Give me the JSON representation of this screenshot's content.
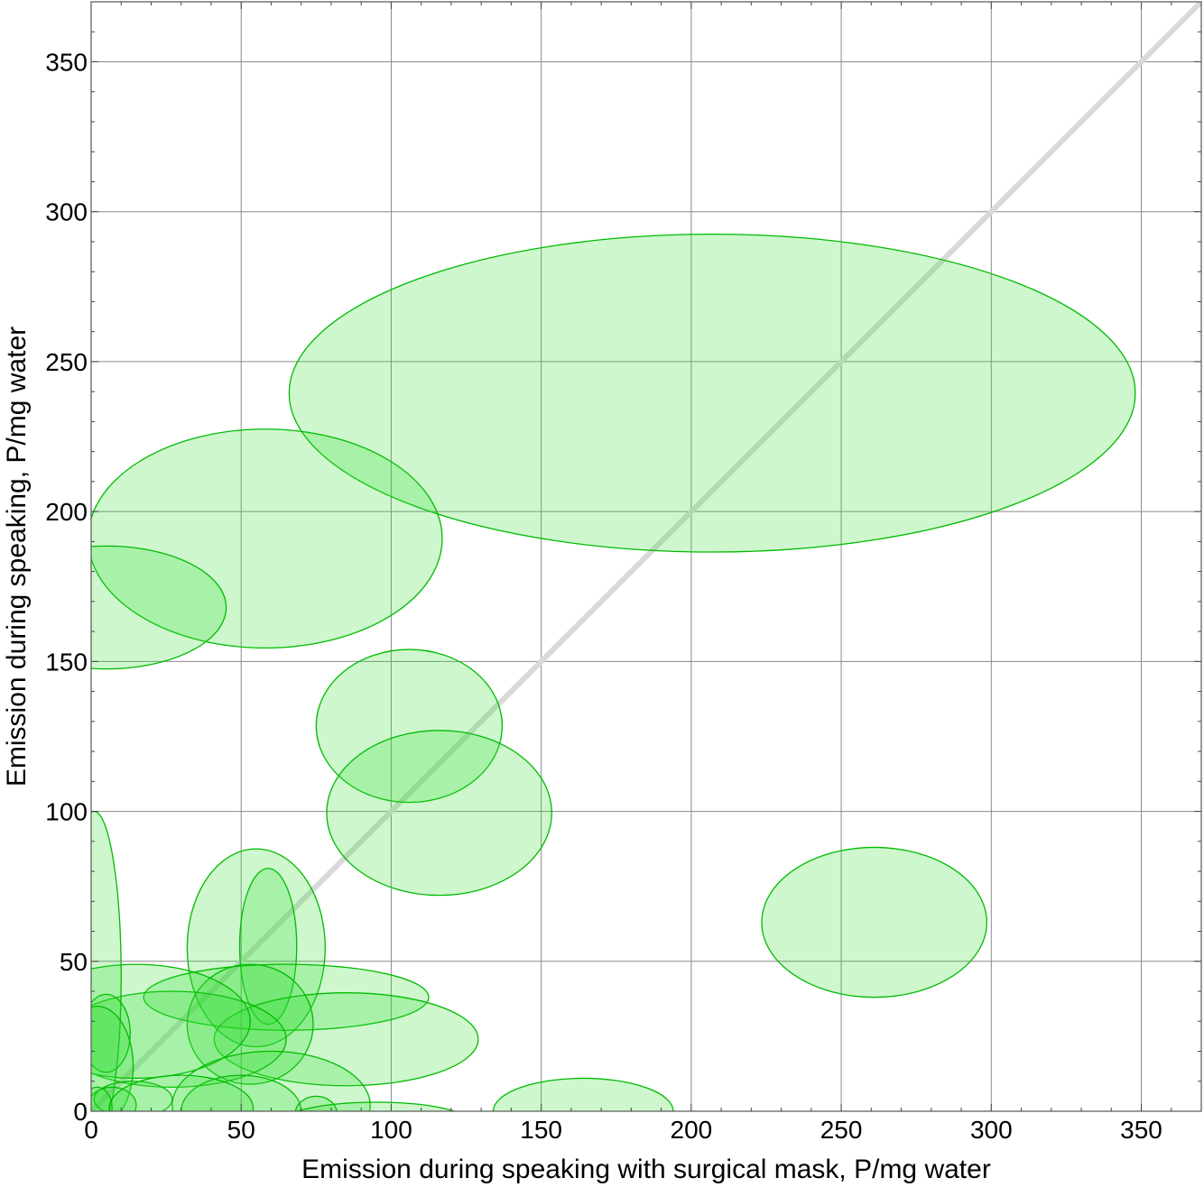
{
  "chart_data": {
    "type": "scatter",
    "title": "",
    "xlabel": "Emission during speaking with surgical mask,   P/mg water",
    "ylabel": "Emission during speaking,   P/mg water",
    "xlim": [
      0,
      370
    ],
    "ylim": [
      0,
      370
    ],
    "xticks": [
      0,
      50,
      100,
      150,
      200,
      250,
      300,
      350
    ],
    "yticks": [
      0,
      50,
      100,
      150,
      200,
      250,
      300,
      350
    ],
    "xtick_labels": [
      "0",
      "50",
      "100",
      "150",
      "200",
      "250",
      "300",
      "350"
    ],
    "ytick_labels": [
      "0",
      "50",
      "100",
      "150",
      "200",
      "250",
      "300",
      "350"
    ],
    "grid": true,
    "reference_line": {
      "from": [
        0,
        0
      ],
      "to": [
        370,
        370
      ],
      "color": "#d9d9d9"
    },
    "marker_fill": "#33dd33",
    "marker_stroke": "#00bb00",
    "ellipses": [
      {
        "cx": 207,
        "cy": 239.5,
        "rx": 141,
        "ry": 53
      },
      {
        "cx": 58,
        "cy": 191,
        "rx": 59,
        "ry": 36.5
      },
      {
        "cx": 5,
        "cy": 168,
        "rx": 40,
        "ry": 20.5
      },
      {
        "cx": 106,
        "cy": 128.5,
        "rx": 31,
        "ry": 25.5
      },
      {
        "cx": 116,
        "cy": 99.5,
        "rx": 37.5,
        "ry": 27.5
      },
      {
        "cx": 261,
        "cy": 63,
        "rx": 37.5,
        "ry": 25
      },
      {
        "cx": 55,
        "cy": 54.5,
        "rx": 23,
        "ry": 33
      },
      {
        "cx": 59,
        "cy": 55,
        "rx": 9.5,
        "ry": 26
      },
      {
        "cx": 65,
        "cy": 38,
        "rx": 47.5,
        "ry": 11
      },
      {
        "cx": 85,
        "cy": 24,
        "rx": 44,
        "ry": 15.5
      },
      {
        "cx": 53,
        "cy": 29,
        "rx": 21,
        "ry": 20
      },
      {
        "cx": 27,
        "cy": 24,
        "rx": 38,
        "ry": 16
      },
      {
        "cx": 15,
        "cy": 30,
        "rx": 38,
        "ry": 19
      },
      {
        "cx": 1,
        "cy": 45,
        "rx": 9,
        "ry": 55
      },
      {
        "cx": 5,
        "cy": 26,
        "rx": 8,
        "ry": 13
      },
      {
        "cx": 2,
        "cy": 15,
        "rx": 12,
        "ry": 20
      },
      {
        "cx": 14,
        "cy": 4,
        "rx": 13,
        "ry": 6
      },
      {
        "cx": 7,
        "cy": 2,
        "rx": 8,
        "ry": 6
      },
      {
        "cx": 2,
        "cy": 1,
        "rx": 5,
        "ry": 7
      },
      {
        "cx": 60,
        "cy": 2,
        "rx": 33,
        "ry": 18
      },
      {
        "cx": 50,
        "cy": 0,
        "rx": 20,
        "ry": 12
      },
      {
        "cx": 75,
        "cy": -1,
        "rx": 7,
        "ry": 6
      },
      {
        "cx": 95,
        "cy": -3,
        "rx": 30,
        "ry": 6
      },
      {
        "cx": 30,
        "cy": 1,
        "rx": 24,
        "ry": 11
      },
      {
        "cx": 164,
        "cy": 0,
        "rx": 30,
        "ry": 11
      }
    ]
  }
}
